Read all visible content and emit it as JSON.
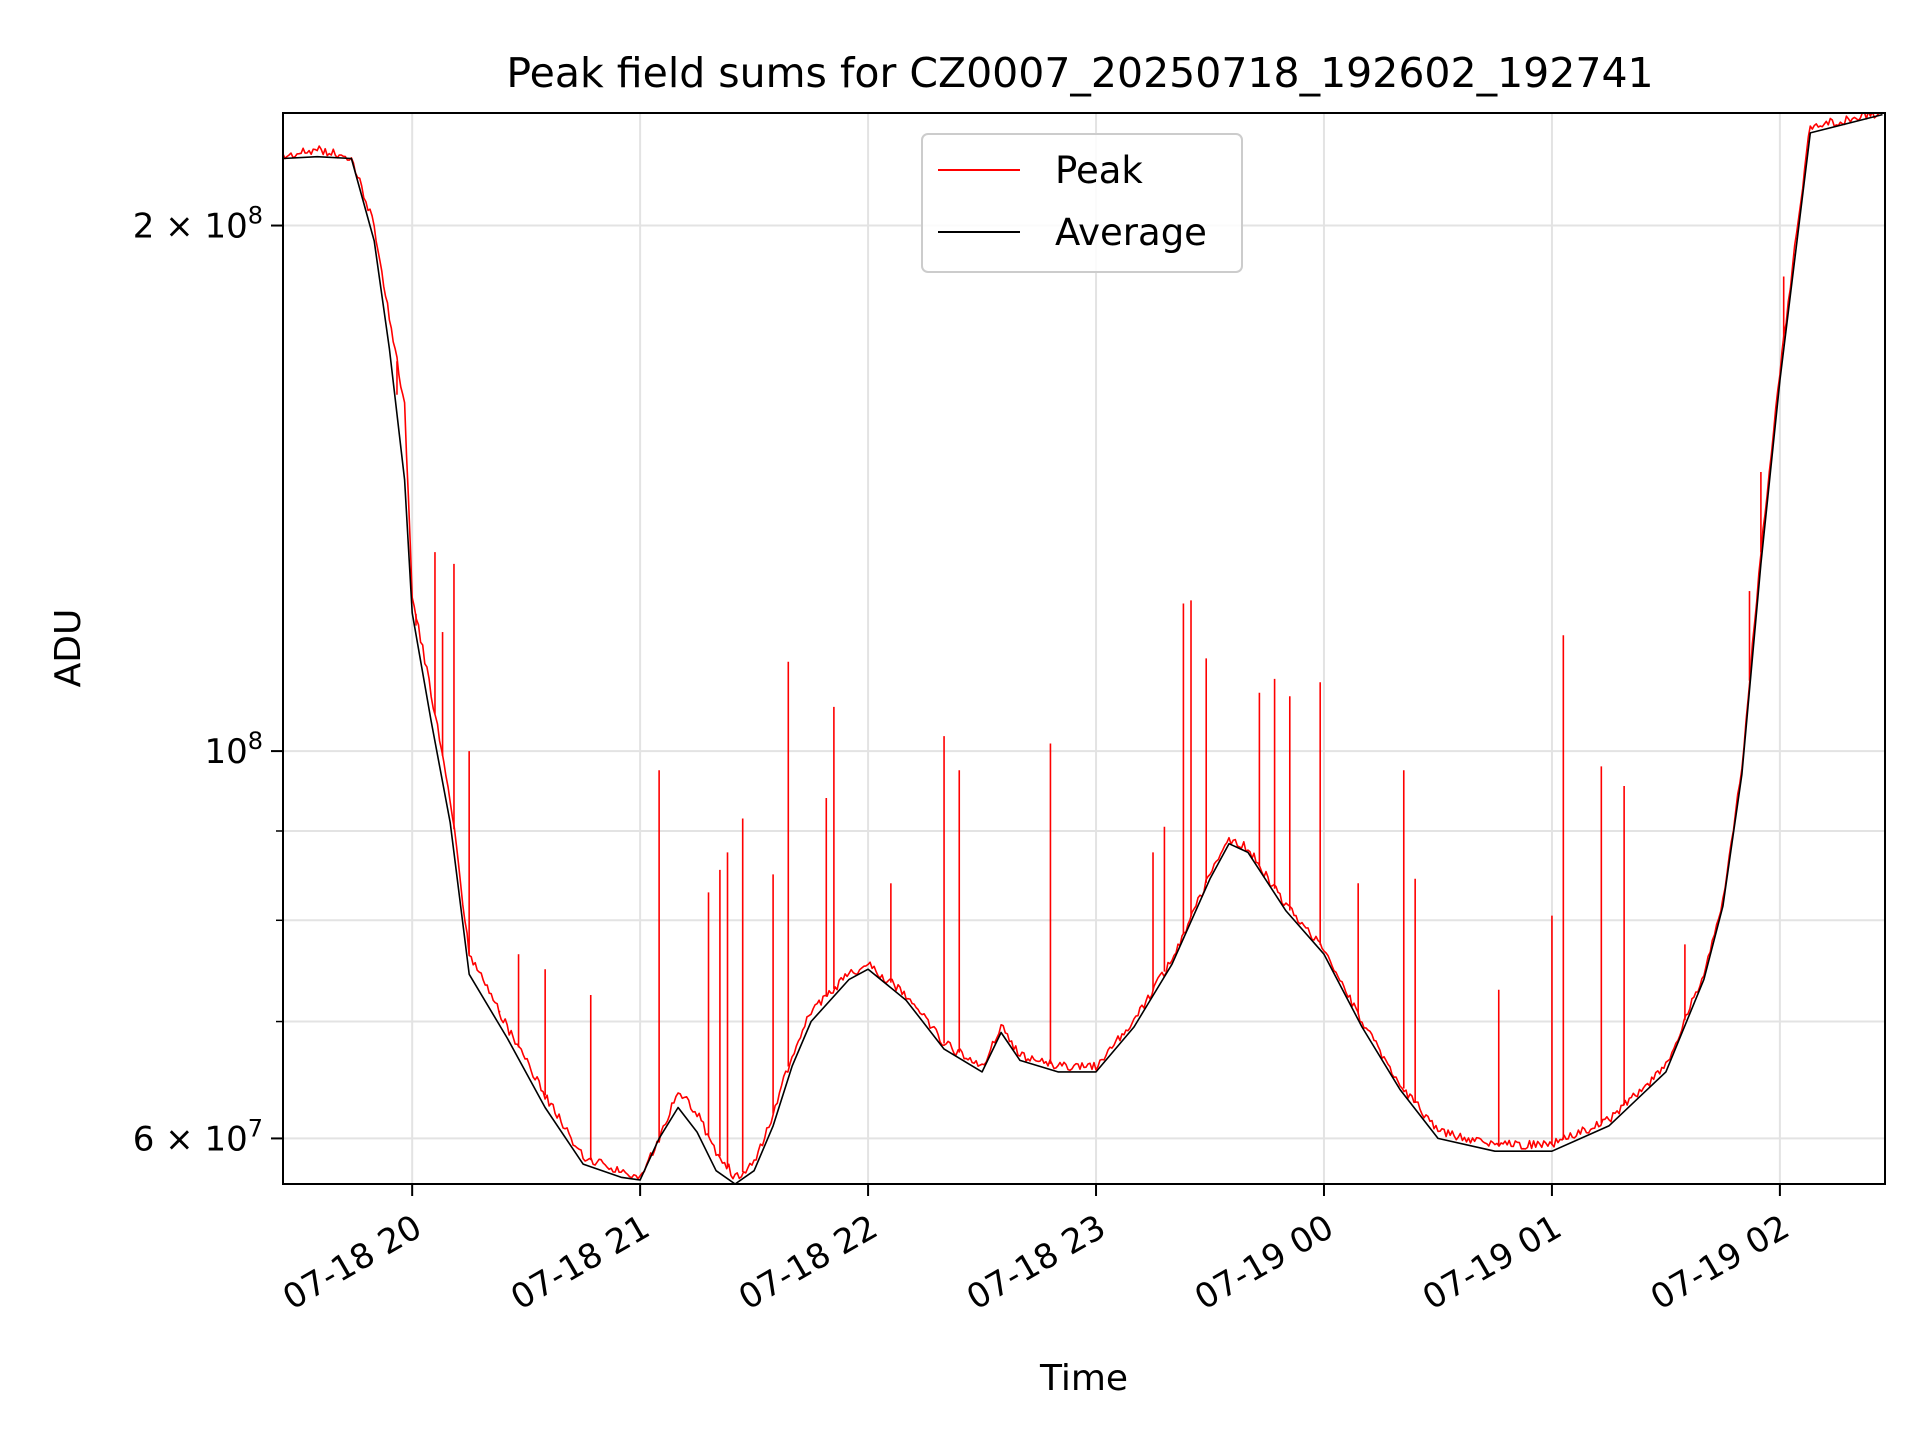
{
  "chart_data": {
    "type": "line",
    "title": "Peak field sums for CZ0007_20250718_192602_192741",
    "xlabel": "Time",
    "ylabel": "ADU",
    "xscale": "time",
    "yscale": "log",
    "xlim": [
      "2025-07-18T19:26:00",
      "2025-07-19T02:27:40"
    ],
    "ylim": [
      56500000,
      232000000
    ],
    "grid": true,
    "legend_placement": "upper center",
    "x_ticks": [
      {
        "t": "2025-07-18T20:00",
        "label": "07-18 20"
      },
      {
        "t": "2025-07-18T21:00",
        "label": "07-18 21"
      },
      {
        "t": "2025-07-18T22:00",
        "label": "07-18 22"
      },
      {
        "t": "2025-07-18T23:00",
        "label": "07-18 23"
      },
      {
        "t": "2025-07-19T00:00",
        "label": "07-19 00"
      },
      {
        "t": "2025-07-19T01:00",
        "label": "07-19 01"
      },
      {
        "t": "2025-07-19T02:00",
        "label": "07-19 02"
      }
    ],
    "y_ticks_major": [
      {
        "v": 60000000,
        "mant": "6",
        "exp": "7"
      },
      {
        "v": 100000000,
        "mant": "",
        "exp": "8"
      },
      {
        "v": 200000000,
        "mant": "2",
        "exp": "8"
      }
    ],
    "y_ticks_minor": [
      70000000,
      80000000,
      90000000
    ],
    "series": [
      {
        "name": "Peak",
        "color": "#ff0000",
        "points": [
          [
            "2025-07-18T19:26",
            219000000
          ],
          [
            "2025-07-18T19:35",
            221000000
          ],
          [
            "2025-07-18T19:44",
            219000000
          ],
          [
            "2025-07-18T19:50",
            200000000
          ],
          [
            "2025-07-18T19:54",
            177000000
          ],
          [
            "2025-07-18T19:58",
            158000000
          ],
          [
            "2025-07-18T20:00",
            123000000
          ],
          [
            "2025-07-18T20:05",
            108000000
          ],
          [
            "2025-07-18T20:10",
            94000000
          ],
          [
            "2025-07-18T20:15",
            76500000
          ],
          [
            "2025-07-18T20:25",
            69500000
          ],
          [
            "2025-07-18T20:35",
            63500000
          ],
          [
            "2025-07-18T20:45",
            58500000
          ],
          [
            "2025-07-18T20:55",
            57500000
          ],
          [
            "2025-07-18T21:00",
            57000000
          ],
          [
            "2025-07-18T21:05",
            60000000
          ],
          [
            "2025-07-18T21:10",
            64000000
          ],
          [
            "2025-07-18T21:15",
            62000000
          ],
          [
            "2025-07-18T21:20",
            59000000
          ],
          [
            "2025-07-18T21:25",
            57000000
          ],
          [
            "2025-07-18T21:30",
            58000000
          ],
          [
            "2025-07-18T21:35",
            62000000
          ],
          [
            "2025-07-18T21:40",
            67000000
          ],
          [
            "2025-07-18T21:45",
            71000000
          ],
          [
            "2025-07-18T21:55",
            74500000
          ],
          [
            "2025-07-18T22:00",
            75500000
          ],
          [
            "2025-07-18T22:10",
            72500000
          ],
          [
            "2025-07-18T22:20",
            68000000
          ],
          [
            "2025-07-18T22:30",
            66000000
          ],
          [
            "2025-07-18T22:35",
            69500000
          ],
          [
            "2025-07-18T22:40",
            67000000
          ],
          [
            "2025-07-18T22:50",
            66000000
          ],
          [
            "2025-07-18T23:00",
            66000000
          ],
          [
            "2025-07-18T23:10",
            70000000
          ],
          [
            "2025-07-18T23:20",
            76000000
          ],
          [
            "2025-07-18T23:30",
            85000000
          ],
          [
            "2025-07-18T23:35",
            89000000
          ],
          [
            "2025-07-18T23:40",
            88000000
          ],
          [
            "2025-07-18T23:50",
            81500000
          ],
          [
            "2025-07-19T00:00",
            77000000
          ],
          [
            "2025-07-19T00:10",
            70000000
          ],
          [
            "2025-07-19T00:20",
            64500000
          ],
          [
            "2025-07-19T00:30",
            60500000
          ],
          [
            "2025-07-19T00:45",
            59500000
          ],
          [
            "2025-07-19T01:00",
            59500000
          ],
          [
            "2025-07-19T01:15",
            61500000
          ],
          [
            "2025-07-19T01:30",
            66000000
          ],
          [
            "2025-07-19T01:40",
            74500000
          ],
          [
            "2025-07-19T01:45",
            82000000
          ],
          [
            "2025-07-19T01:50",
            98000000
          ],
          [
            "2025-07-19T01:55",
            130000000
          ],
          [
            "2025-07-19T02:00",
            165000000
          ],
          [
            "2025-07-19T02:05",
            203000000
          ],
          [
            "2025-07-19T02:08",
            228000000
          ],
          [
            "2025-07-19T02:27",
            232000000
          ]
        ],
        "spikes": [
          [
            "2025-07-18T19:56",
            160000000
          ],
          [
            "2025-07-18T20:01",
            118000000
          ],
          [
            "2025-07-18T20:06",
            130000000
          ],
          [
            "2025-07-18T20:08",
            117000000
          ],
          [
            "2025-07-18T20:11",
            128000000
          ],
          [
            "2025-07-18T20:15",
            100000000
          ],
          [
            "2025-07-18T20:23",
            71000000
          ],
          [
            "2025-07-18T20:28",
            76500000
          ],
          [
            "2025-07-18T20:35",
            75000000
          ],
          [
            "2025-07-18T20:47",
            72500000
          ],
          [
            "2025-07-18T21:05",
            97500000
          ],
          [
            "2025-07-18T21:18",
            83000000
          ],
          [
            "2025-07-18T21:21",
            85500000
          ],
          [
            "2025-07-18T21:23",
            87500000
          ],
          [
            "2025-07-18T21:27",
            91500000
          ],
          [
            "2025-07-18T21:35",
            85000000
          ],
          [
            "2025-07-18T21:39",
            112500000
          ],
          [
            "2025-07-18T21:49",
            94000000
          ],
          [
            "2025-07-18T21:51",
            106000000
          ],
          [
            "2025-07-18T22:06",
            84000000
          ],
          [
            "2025-07-18T22:20",
            102000000
          ],
          [
            "2025-07-18T22:24",
            97500000
          ],
          [
            "2025-07-18T22:48",
            101000000
          ],
          [
            "2025-07-18T23:15",
            87500000
          ],
          [
            "2025-07-18T23:18",
            90500000
          ],
          [
            "2025-07-18T23:23",
            121500000
          ],
          [
            "2025-07-18T23:25",
            122000000
          ],
          [
            "2025-07-18T23:29",
            113000000
          ],
          [
            "2025-07-18T23:43",
            108000000
          ],
          [
            "2025-07-18T23:47",
            110000000
          ],
          [
            "2025-07-18T23:51",
            107500000
          ],
          [
            "2025-07-18T23:59",
            109500000
          ],
          [
            "2025-07-19T00:09",
            84000000
          ],
          [
            "2025-07-19T00:21",
            97500000
          ],
          [
            "2025-07-19T00:24",
            84500000
          ],
          [
            "2025-07-19T00:46",
            73000000
          ],
          [
            "2025-07-19T01:00",
            80500000
          ],
          [
            "2025-07-19T01:03",
            116500000
          ],
          [
            "2025-07-19T01:13",
            98000000
          ],
          [
            "2025-07-19T01:19",
            95500000
          ],
          [
            "2025-07-19T01:35",
            77500000
          ],
          [
            "2025-07-19T01:52",
            123500000
          ],
          [
            "2025-07-19T01:55",
            144500000
          ],
          [
            "2025-07-19T02:01",
            187000000
          ]
        ]
      },
      {
        "name": "Average",
        "color": "#000000",
        "points": [
          [
            "2025-07-18T19:26",
            218500000
          ],
          [
            "2025-07-18T19:35",
            219000000
          ],
          [
            "2025-07-18T19:44",
            218500000
          ],
          [
            "2025-07-18T19:50",
            196000000
          ],
          [
            "2025-07-18T19:54",
            170000000
          ],
          [
            "2025-07-18T19:58",
            143000000
          ],
          [
            "2025-07-18T20:00",
            120000000
          ],
          [
            "2025-07-18T20:05",
            104000000
          ],
          [
            "2025-07-18T20:10",
            91000000
          ],
          [
            "2025-07-18T20:15",
            74500000
          ],
          [
            "2025-07-18T20:25",
            68500000
          ],
          [
            "2025-07-18T20:35",
            62500000
          ],
          [
            "2025-07-18T20:45",
            58000000
          ],
          [
            "2025-07-18T20:55",
            57000000
          ],
          [
            "2025-07-18T21:00",
            56800000
          ],
          [
            "2025-07-18T21:05",
            60000000
          ],
          [
            "2025-07-18T21:10",
            62500000
          ],
          [
            "2025-07-18T21:15",
            60500000
          ],
          [
            "2025-07-18T21:20",
            57500000
          ],
          [
            "2025-07-18T21:25",
            56500000
          ],
          [
            "2025-07-18T21:30",
            57500000
          ],
          [
            "2025-07-18T21:35",
            61000000
          ],
          [
            "2025-07-18T21:40",
            66000000
          ],
          [
            "2025-07-18T21:45",
            70000000
          ],
          [
            "2025-07-18T21:55",
            74000000
          ],
          [
            "2025-07-18T22:00",
            75000000
          ],
          [
            "2025-07-18T22:10",
            72000000
          ],
          [
            "2025-07-18T22:20",
            67500000
          ],
          [
            "2025-07-18T22:30",
            65500000
          ],
          [
            "2025-07-18T22:35",
            69000000
          ],
          [
            "2025-07-18T22:40",
            66500000
          ],
          [
            "2025-07-18T22:50",
            65500000
          ],
          [
            "2025-07-18T23:00",
            65500000
          ],
          [
            "2025-07-18T23:10",
            69500000
          ],
          [
            "2025-07-18T23:20",
            75500000
          ],
          [
            "2025-07-18T23:30",
            84500000
          ],
          [
            "2025-07-18T23:35",
            88500000
          ],
          [
            "2025-07-18T23:40",
            87500000
          ],
          [
            "2025-07-18T23:50",
            81000000
          ],
          [
            "2025-07-19T00:00",
            76500000
          ],
          [
            "2025-07-19T00:10",
            69500000
          ],
          [
            "2025-07-19T00:20",
            64000000
          ],
          [
            "2025-07-19T00:30",
            60000000
          ],
          [
            "2025-07-19T00:45",
            59000000
          ],
          [
            "2025-07-19T01:00",
            59000000
          ],
          [
            "2025-07-19T01:15",
            61000000
          ],
          [
            "2025-07-19T01:30",
            65500000
          ],
          [
            "2025-07-19T01:40",
            74000000
          ],
          [
            "2025-07-19T01:45",
            81500000
          ],
          [
            "2025-07-19T01:50",
            97000000
          ],
          [
            "2025-07-19T01:55",
            128000000
          ],
          [
            "2025-07-19T02:00",
            163000000
          ],
          [
            "2025-07-19T02:05",
            200000000
          ],
          [
            "2025-07-19T02:08",
            226000000
          ],
          [
            "2025-07-19T02:27",
            231500000
          ]
        ]
      }
    ]
  }
}
